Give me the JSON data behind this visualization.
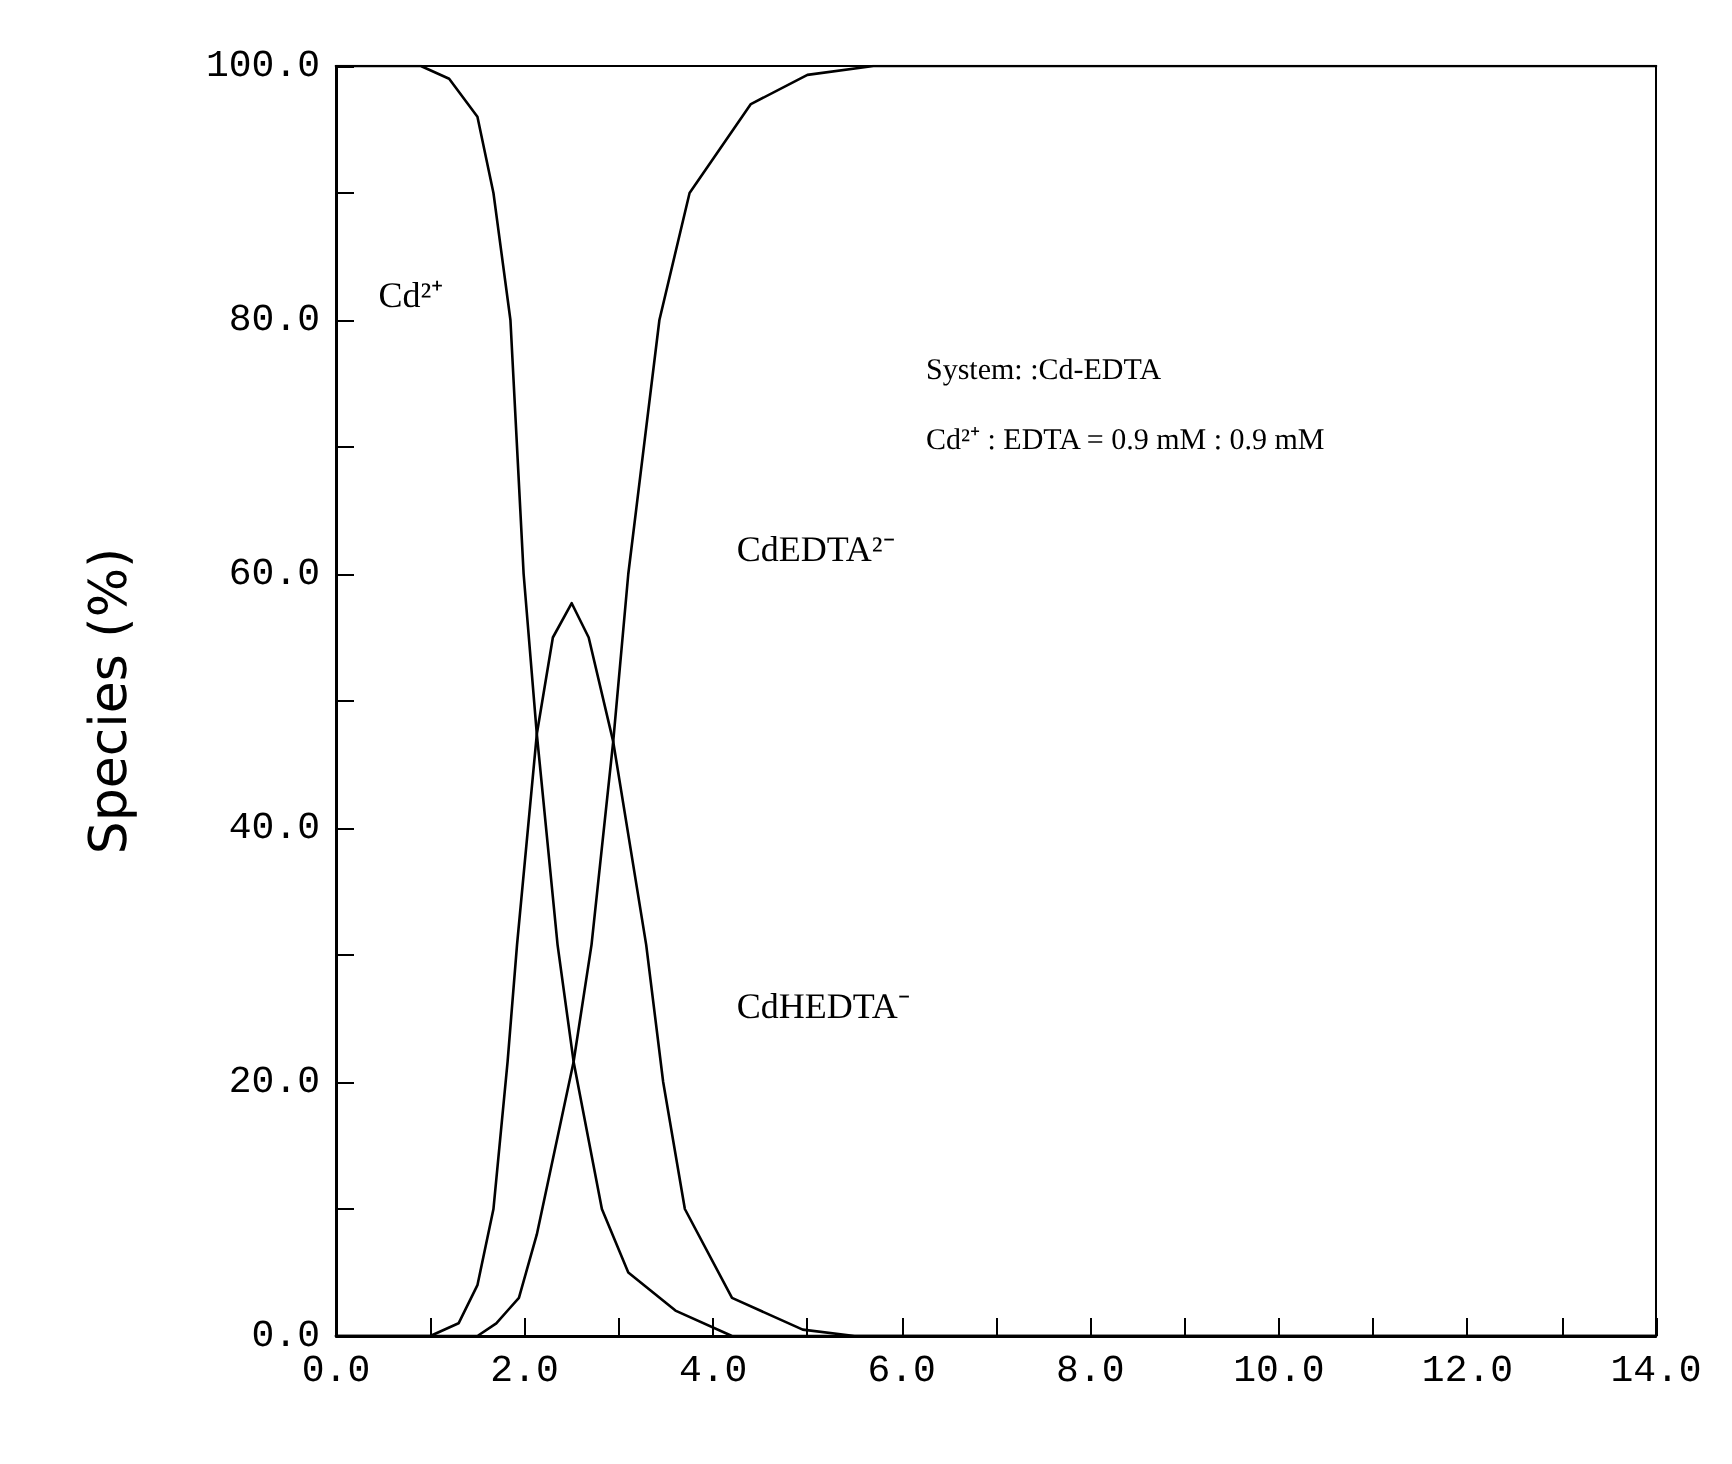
{
  "chart_data": {
    "type": "line",
    "ylabel": "Species (%)",
    "xlim": [
      0,
      14
    ],
    "xticks": [
      {
        "value": 0,
        "label": "0.0"
      },
      {
        "value": 1,
        "label": null
      },
      {
        "value": 2,
        "label": "2.0"
      },
      {
        "value": 3,
        "label": null
      },
      {
        "value": 4,
        "label": "4.0"
      },
      {
        "value": 5,
        "label": null
      },
      {
        "value": 6,
        "label": "6.0"
      },
      {
        "value": 7,
        "label": null
      },
      {
        "value": 8,
        "label": "8.0"
      },
      {
        "value": 9,
        "label": null
      },
      {
        "value": 10,
        "label": "10.0"
      },
      {
        "value": 11,
        "label": null
      },
      {
        "value": 12,
        "label": "12.0"
      },
      {
        "value": 13,
        "label": null
      },
      {
        "value": 14,
        "label": "14.0"
      }
    ],
    "ylim": [
      0,
      100
    ],
    "yticks": [
      {
        "value": 0,
        "label": "0.0"
      },
      {
        "value": 10,
        "label": null
      },
      {
        "value": 20,
        "label": "20.0"
      },
      {
        "value": 30,
        "label": null
      },
      {
        "value": 40,
        "label": "40.0"
      },
      {
        "value": 50,
        "label": null
      },
      {
        "value": 60,
        "label": "60.0"
      },
      {
        "value": 70,
        "label": null
      },
      {
        "value": 80,
        "label": "80.0"
      },
      {
        "value": 90,
        "label": null
      },
      {
        "value": 100,
        "label": "100.0"
      }
    ],
    "grid": false,
    "legend": false,
    "marker": "none",
    "line_style": "solid",
    "annotations": [
      "System: :Cd-EDTA",
      "Cd²⁺ : EDTA = 0.9 mM : 0.9 mM"
    ],
    "series": [
      {
        "name": "Cd²⁺",
        "color": "#000000",
        "x": [
          0,
          0.9,
          1.2,
          1.5,
          1.67,
          1.85,
          1.99,
          2.13,
          2.35,
          2.52,
          2.82,
          3.1,
          3.6,
          4.2,
          14
        ],
        "values": [
          100,
          100,
          99,
          96,
          90,
          80,
          60,
          47.4,
          30.8,
          21.6,
          10,
          5,
          2,
          0,
          0
        ]
      },
      {
        "name": "CdHEDTA⁻",
        "color": "#000000",
        "x": [
          0,
          1.0,
          1.3,
          1.5,
          1.67,
          1.82,
          1.92,
          2.13,
          2.3,
          2.5,
          2.68,
          2.94,
          3.29,
          3.47,
          3.7,
          4.2,
          4.95,
          5.5,
          14
        ],
        "values": [
          0,
          0,
          1,
          4,
          10,
          21.6,
          30.8,
          47.4,
          55,
          57.7,
          55,
          46.8,
          30.8,
          20,
          10,
          3,
          0.5,
          0,
          0
        ]
      },
      {
        "name": "CdEDTA²⁻",
        "color": "#000000",
        "x": [
          0,
          1.5,
          1.7,
          1.94,
          2.13,
          2.52,
          2.71,
          2.94,
          3.1,
          3.43,
          3.75,
          4.4,
          5.0,
          5.7,
          6.0,
          14
        ],
        "values": [
          0,
          0,
          1,
          3,
          8,
          21.6,
          30.8,
          46.8,
          60,
          80,
          90,
          97,
          99.3,
          100,
          100,
          100
        ]
      }
    ]
  }
}
